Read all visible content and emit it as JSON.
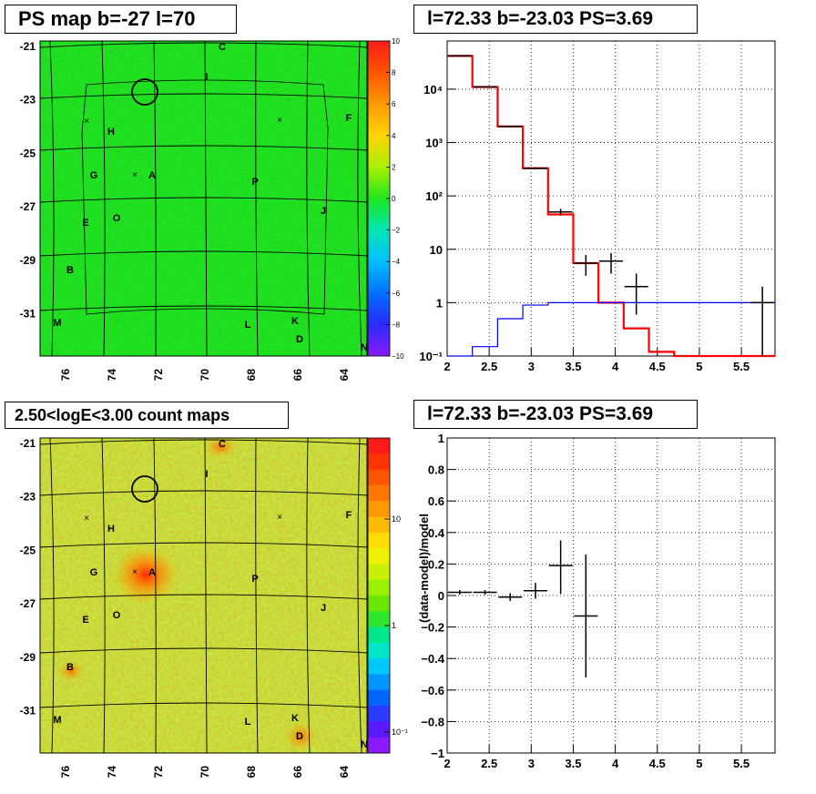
{
  "titles": {
    "ps_map": "PS map b=-27 l=70",
    "spectrum": "l=72.33 b=-23.03 PS=3.69",
    "count_map": "2.50<logE<3.00 count maps",
    "residual": "l=72.33 b=-23.03 PS=3.69"
  },
  "maps": {
    "x_ticks": [
      "76",
      "74",
      "72",
      "70",
      "68",
      "66",
      "64"
    ],
    "y_ticks": [
      "-21",
      "-23",
      "-25",
      "-27",
      "-29",
      "-31"
    ],
    "sources": [
      "A",
      "B",
      "C",
      "D",
      "E",
      "F",
      "G",
      "H",
      "I",
      "J",
      "K",
      "L",
      "M",
      "O",
      "P",
      "N"
    ],
    "ps_colorbar_ticks": [
      "10",
      "8",
      "6",
      "4",
      "2",
      "0",
      "−2",
      "−4",
      "−6",
      "−8",
      "−10"
    ],
    "count_colorbar_ticks": [
      "10",
      "1",
      "10⁻¹"
    ],
    "colors": {
      "ps_background": "#22e622",
      "count_background": "#c8e63c"
    }
  },
  "chart_data": [
    {
      "type": "step",
      "title": "l=72.33 b=-23.03 PS=3.69",
      "xlabel": "",
      "ylabel": "",
      "xlim": [
        2,
        5.9
      ],
      "ylim": [
        0.1,
        80000
      ],
      "yscale": "log",
      "x_ticks": [
        "2",
        "2.5",
        "3",
        "3.5",
        "4",
        "4.5",
        "5",
        "5.5"
      ],
      "y_ticks": [
        "10⁻¹",
        "1",
        "10",
        "10²",
        "10³",
        "10⁴"
      ],
      "bin_edges": [
        2.0,
        2.3,
        2.6,
        2.9,
        3.2,
        3.5,
        3.8,
        4.1,
        4.4,
        4.7,
        5.0,
        5.3,
        5.6,
        5.9
      ],
      "series": [
        {
          "color": "#ff0000",
          "values": [
            42000,
            11000,
            2000,
            330,
            45,
            5.5,
            1.0,
            0.33,
            0.12,
            0.1,
            0.1,
            0.1,
            0.1
          ]
        },
        {
          "color": "#0000ff",
          "values": [
            0.1,
            0.15,
            0.5,
            0.9,
            1.0,
            1.0,
            1.0,
            1.0,
            1.0,
            1.0,
            1.0,
            1.0,
            1.0
          ]
        }
      ],
      "points": [
        {
          "x": 2.15,
          "y": 42000,
          "lo": 41500,
          "hi": 42500
        },
        {
          "x": 2.45,
          "y": 11000,
          "lo": 10900,
          "hi": 11100
        },
        {
          "x": 2.75,
          "y": 2000,
          "lo": 1960,
          "hi": 2040
        },
        {
          "x": 3.05,
          "y": 330,
          "lo": 315,
          "hi": 345
        },
        {
          "x": 3.35,
          "y": 50,
          "lo": 43,
          "hi": 57
        },
        {
          "x": 3.65,
          "y": 5.5,
          "lo": 3.2,
          "hi": 7.8
        },
        {
          "x": 3.95,
          "y": 6,
          "lo": 3.5,
          "hi": 8.5
        },
        {
          "x": 4.25,
          "y": 2,
          "lo": 0.6,
          "hi": 3.5
        },
        {
          "x": 5.75,
          "y": 1,
          "lo": 0.1,
          "hi": 2.0
        }
      ]
    },
    {
      "type": "errorbar",
      "title": "l=72.33 b=-23.03 PS=3.69",
      "xlabel": "",
      "ylabel": "(data-model)/model",
      "xlim": [
        2,
        5.9
      ],
      "ylim": [
        -1,
        1
      ],
      "x_ticks": [
        "2",
        "2.5",
        "3",
        "3.5",
        "4",
        "4.5",
        "5",
        "5.5"
      ],
      "y_ticks": [
        "−1",
        "−0.8",
        "−0.6",
        "−0.4",
        "−0.2",
        "0",
        "0.2",
        "0.4",
        "0.6",
        "0.8",
        "1"
      ],
      "points": [
        {
          "x": 2.15,
          "y": 0.02,
          "lo": 0.005,
          "hi": 0.035
        },
        {
          "x": 2.45,
          "y": 0.02,
          "lo": 0.005,
          "hi": 0.035
        },
        {
          "x": 2.75,
          "y": -0.01,
          "lo": -0.035,
          "hi": 0.015
        },
        {
          "x": 3.05,
          "y": 0.03,
          "lo": -0.02,
          "hi": 0.08
        },
        {
          "x": 3.35,
          "y": 0.19,
          "lo": 0.01,
          "hi": 0.35
        },
        {
          "x": 3.65,
          "y": -0.13,
          "lo": -0.52,
          "hi": 0.26
        }
      ]
    }
  ]
}
